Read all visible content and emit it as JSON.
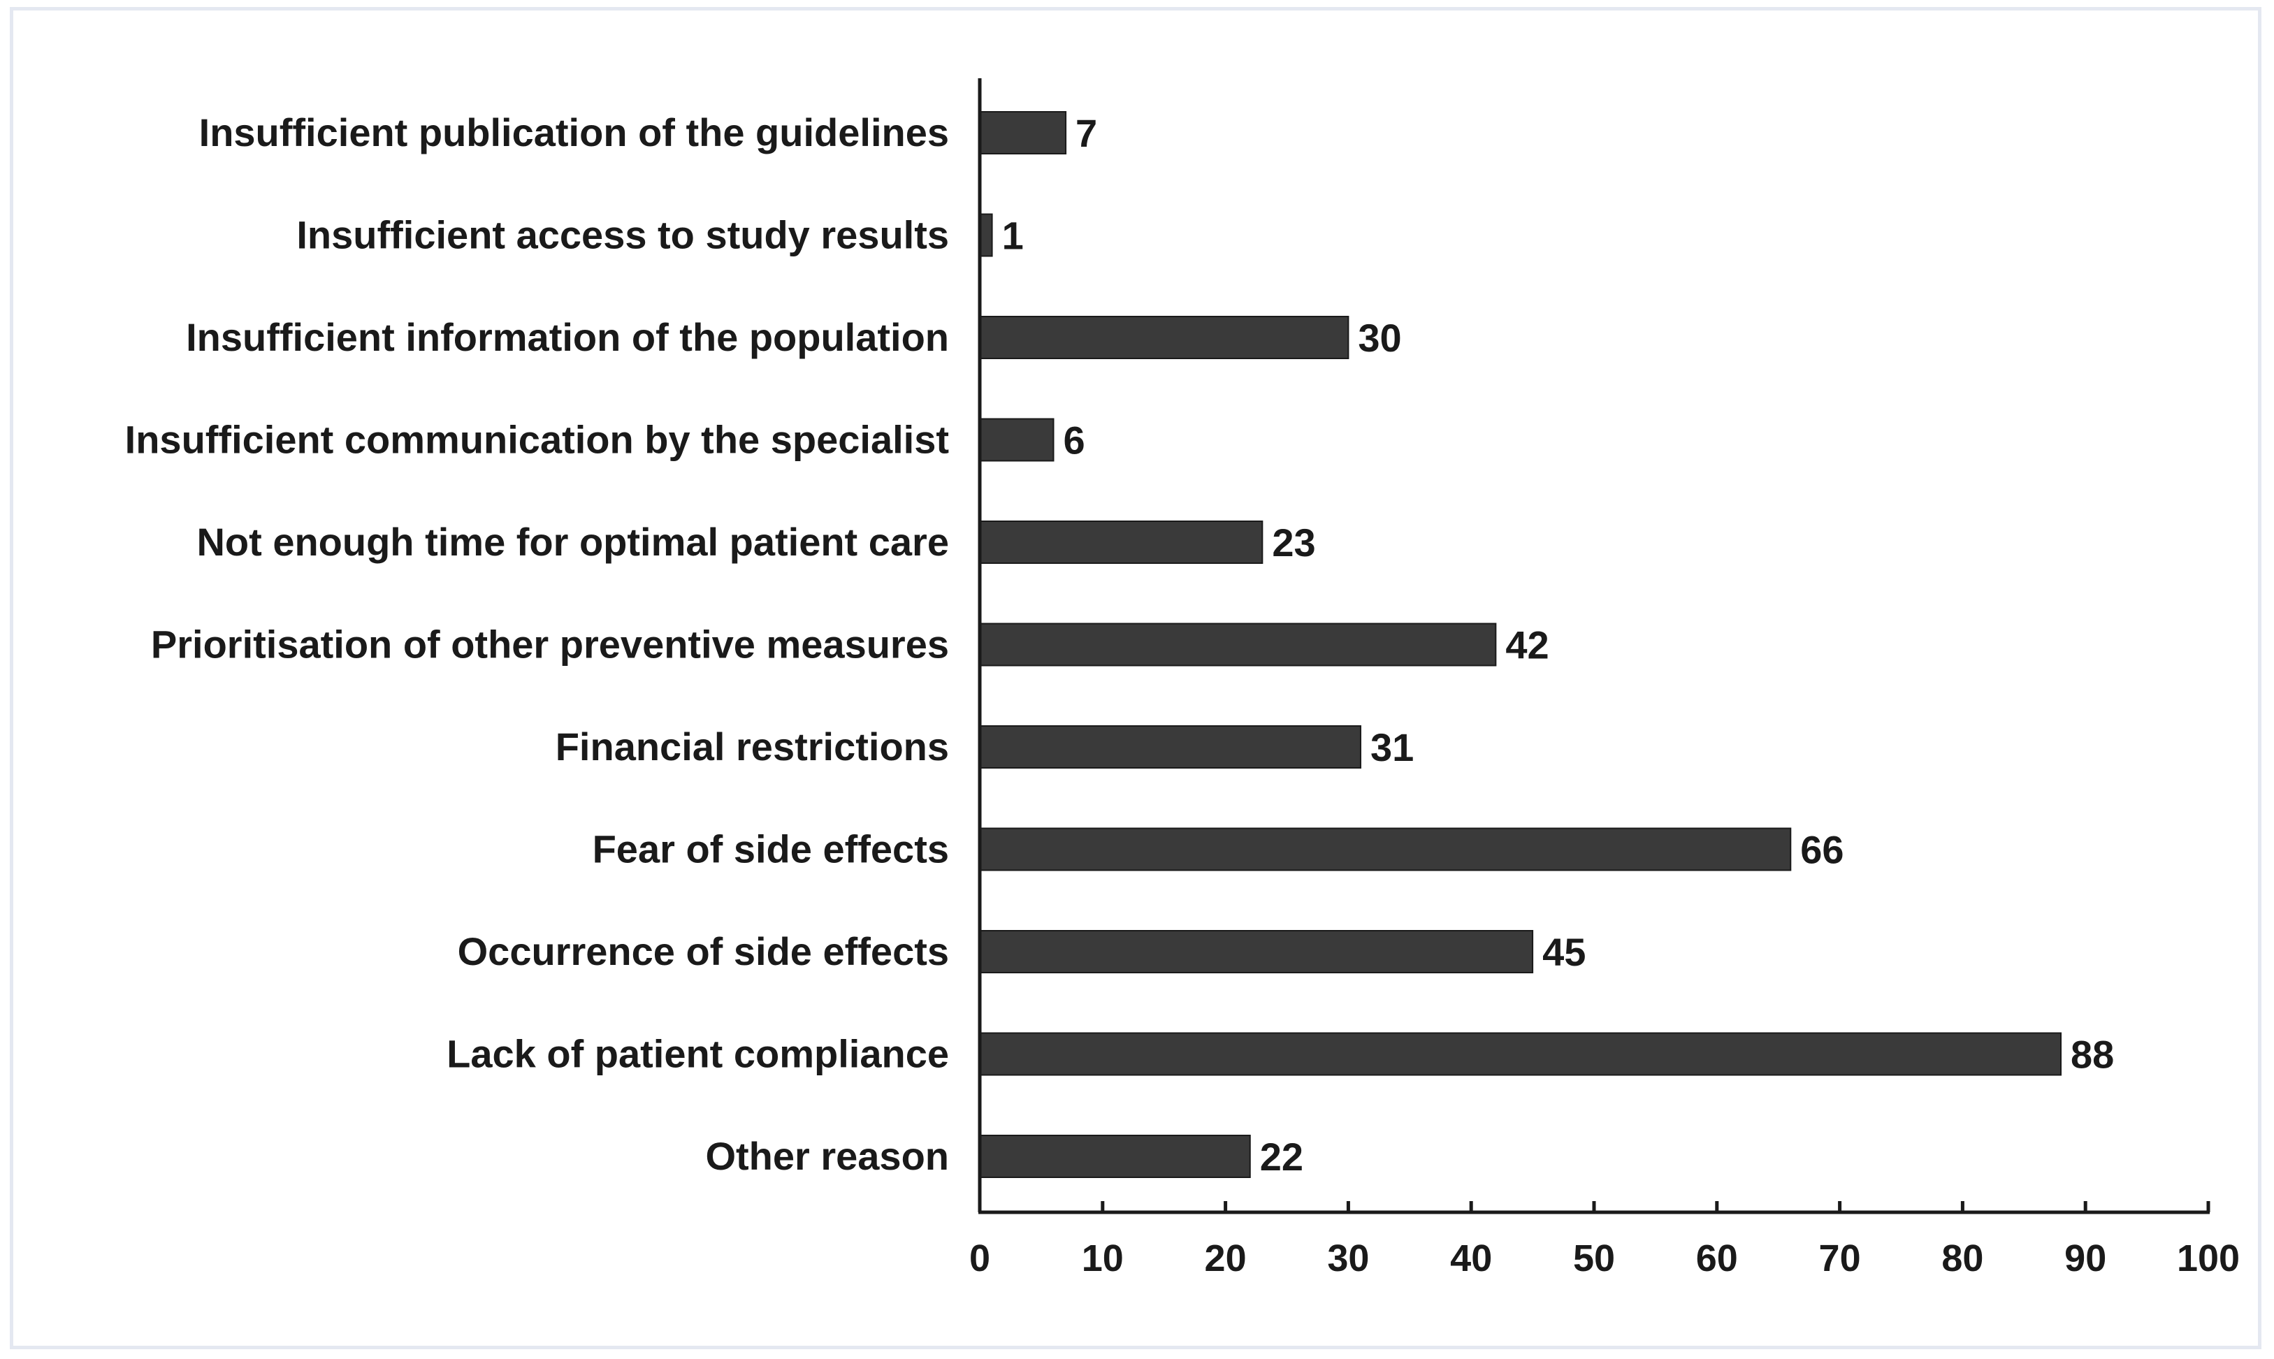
{
  "chart_data": {
    "type": "bar",
    "orientation": "horizontal",
    "title": "",
    "xlabel": "",
    "ylabel": "",
    "xlim": [
      0,
      100
    ],
    "x_ticks": [
      0,
      10,
      20,
      30,
      40,
      50,
      60,
      70,
      80,
      90,
      100
    ],
    "grid": false,
    "categories": [
      "Insufficient publication of the guidelines",
      "Insufficient access to study results",
      "Insufficient information of the population",
      "Insufficient communication by the specialist",
      "Not enough time for optimal patient care",
      "Prioritisation of other preventive measures",
      "Financial restrictions",
      "Fear of side effects",
      "Occurrence of side effects",
      "Lack of patient compliance",
      "Other reason"
    ],
    "values": [
      7,
      1,
      30,
      6,
      23,
      42,
      31,
      66,
      45,
      88,
      22
    ],
    "bar_color": "#3a3a3a",
    "frame_color": "#e4e8f1"
  }
}
